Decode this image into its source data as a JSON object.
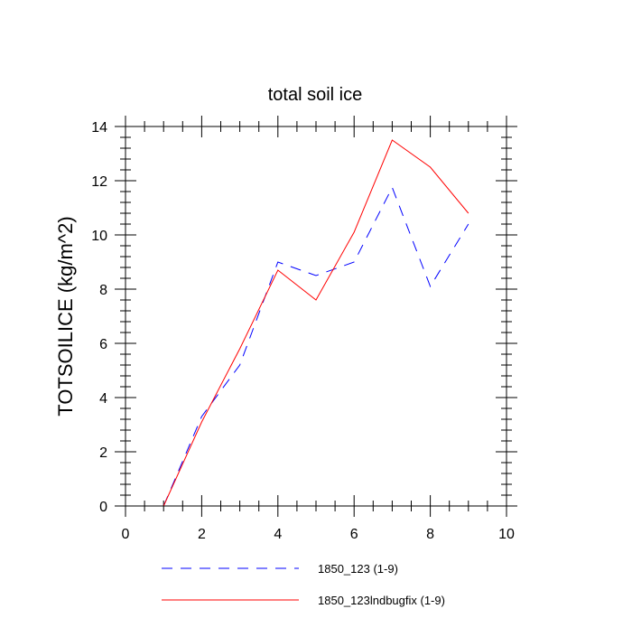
{
  "chart_data": {
    "type": "line",
    "title": "total soil ice",
    "xlabel": "",
    "ylabel": "TOTSOILICE  (kg/m^2)",
    "xlim": [
      0,
      10
    ],
    "ylim": [
      0,
      14
    ],
    "x_ticks": [
      0,
      2,
      4,
      6,
      8,
      10
    ],
    "y_ticks": [
      0,
      2,
      4,
      6,
      8,
      10,
      12,
      14
    ],
    "x_tick_labels": [
      "0",
      "2",
      "4",
      "6",
      "8",
      "10"
    ],
    "y_tick_labels": [
      "0",
      "2",
      "4",
      "6",
      "8",
      "10",
      "12",
      "14"
    ],
    "grid": false,
    "legend_position": "bottom",
    "series": [
      {
        "name": "1850_123 (1-9)",
        "color": "#0000ff",
        "line_style": "dashed",
        "x": [
          1,
          2,
          3,
          4,
          5,
          6,
          7,
          8,
          9
        ],
        "values": [
          0,
          3.3,
          5.2,
          9.0,
          8.5,
          9.0,
          11.75,
          8.1,
          10.4
        ]
      },
      {
        "name": "1850_123lndbugfix (1-9)",
        "color": "#ff0000",
        "line_style": "solid",
        "x": [
          1,
          2,
          3,
          4,
          5,
          6,
          7,
          8,
          9
        ],
        "values": [
          0,
          3.1,
          5.8,
          8.7,
          7.6,
          10.1,
          13.5,
          12.5,
          10.8
        ]
      }
    ]
  }
}
